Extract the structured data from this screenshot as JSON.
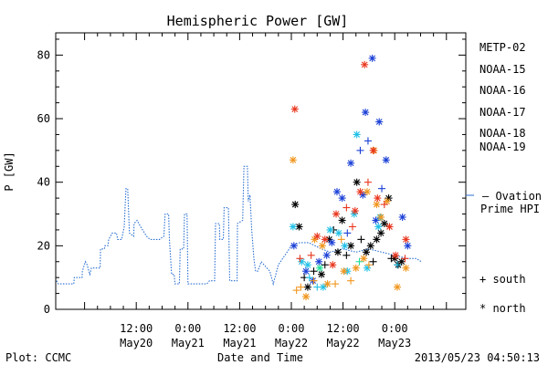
{
  "chart_data": {
    "type": "scatter",
    "title": "Hemispheric Power [GW]",
    "xlabel": "Date and Time",
    "ylabel": "P [GW]",
    "xlim_hours": [
      -66.7,
      28.5
    ],
    "ylim": [
      0,
      87
    ],
    "y_ticks": [
      0,
      20,
      40,
      60,
      80
    ],
    "x_ticks": [
      {
        "h": -48,
        "top": "12:00",
        "bottom": "May20"
      },
      {
        "h": -36,
        "top": "0:00",
        "bottom": "May21"
      },
      {
        "h": -24,
        "top": "12:00",
        "bottom": "May21"
      },
      {
        "h": -12,
        "top": "0:00",
        "bottom": "May22"
      },
      {
        "h": 0,
        "top": "12:00",
        "bottom": "May22"
      },
      {
        "h": 12,
        "top": "0:00",
        "bottom": "May23"
      }
    ],
    "legend": [
      {
        "name": "METP-02",
        "color": "#000000"
      },
      {
        "name": "NOAA-15",
        "color": "#1a3fd6"
      },
      {
        "name": "NOAA-16",
        "color": "#22c0e6"
      },
      {
        "name": "NOAA-17",
        "color": "#22e09a"
      },
      {
        "name": "NOAA-18",
        "color": "#f0961e"
      },
      {
        "name": "NOAA-19",
        "color": "#e8361e"
      }
    ],
    "ovation_label_1": "– Ovation",
    "ovation_label_2": "Prime HPI",
    "ovation_color": "#2a6fd0",
    "marker_south_label": "+ south",
    "marker_north_label": "* north",
    "ovation": [
      [
        -66.5,
        9
      ],
      [
        -66.1,
        8
      ],
      [
        -64.5,
        8
      ],
      [
        -62.5,
        8
      ],
      [
        -62.4,
        10
      ],
      [
        -60.6,
        10
      ],
      [
        -60.5,
        12
      ],
      [
        -59.8,
        15
      ],
      [
        -59.4,
        14
      ],
      [
        -59.0,
        12
      ],
      [
        -58.8,
        11
      ],
      [
        -58.4,
        13
      ],
      [
        -56.4,
        13
      ],
      [
        -56.3,
        19
      ],
      [
        -55.4,
        19
      ],
      [
        -55.3,
        20
      ],
      [
        -54.6,
        20
      ],
      [
        -54.4,
        22
      ],
      [
        -53.6,
        24
      ],
      [
        -52.6,
        24
      ],
      [
        -52.3,
        22
      ],
      [
        -51.4,
        22
      ],
      [
        -50.8,
        26
      ],
      [
        -50.4,
        38
      ],
      [
        -50.0,
        38
      ],
      [
        -49.6,
        24
      ],
      [
        -48.6,
        23
      ],
      [
        -48.5,
        27
      ],
      [
        -47.8,
        28
      ],
      [
        -47.0,
        26
      ],
      [
        -45.6,
        23
      ],
      [
        -44.8,
        22
      ],
      [
        -42.6,
        22
      ],
      [
        -41.6,
        23
      ],
      [
        -41.3,
        30
      ],
      [
        -40.5,
        30
      ],
      [
        -40.3,
        22
      ],
      [
        -39.8,
        11
      ],
      [
        -39.2,
        11
      ],
      [
        -39.0,
        8
      ],
      [
        -38.0,
        8
      ],
      [
        -37.8,
        19
      ],
      [
        -37.0,
        19
      ],
      [
        -36.8,
        30
      ],
      [
        -36.2,
        30
      ],
      [
        -36.0,
        8
      ],
      [
        -31.6,
        8
      ],
      [
        -31.0,
        9
      ],
      [
        -29.8,
        9
      ],
      [
        -29.6,
        27
      ],
      [
        -28.7,
        27
      ],
      [
        -28.6,
        22
      ],
      [
        -27.8,
        22
      ],
      [
        -27.6,
        32
      ],
      [
        -26.6,
        32
      ],
      [
        -26.3,
        9
      ],
      [
        -24.6,
        9
      ],
      [
        -24.5,
        27
      ],
      [
        -23.3,
        28
      ],
      [
        -23.0,
        45
      ],
      [
        -22.2,
        45
      ],
      [
        -22.0,
        34
      ],
      [
        -21.6,
        36
      ],
      [
        -21.2,
        25
      ],
      [
        -20.7,
        16
      ],
      [
        -20.3,
        12
      ],
      [
        -19.8,
        12
      ],
      [
        -19.0,
        15
      ],
      [
        -17.0,
        12
      ],
      [
        -16.2,
        8
      ],
      [
        -15.0,
        14
      ],
      [
        -13.0,
        18
      ],
      [
        -12.0,
        20
      ],
      [
        -10.0,
        21
      ],
      [
        -8.0,
        21
      ],
      [
        -5.0,
        19
      ],
      [
        -3.0,
        18
      ],
      [
        0.0,
        19
      ],
      [
        3.0,
        18
      ],
      [
        6.0,
        19
      ],
      [
        9.0,
        18
      ],
      [
        12.0,
        17
      ],
      [
        15.0,
        16
      ],
      [
        17.0,
        16
      ],
      [
        18.2,
        15
      ]
    ],
    "points": [
      {
        "s": "METP-02",
        "m": "*",
        "x": -11.1,
        "y": 33
      },
      {
        "s": "METP-02",
        "m": "*",
        "x": -10.2,
        "y": 26
      },
      {
        "s": "METP-02",
        "m": "+",
        "x": -9.0,
        "y": 10
      },
      {
        "s": "METP-02",
        "m": "*",
        "x": -8.2,
        "y": 7
      },
      {
        "s": "METP-02",
        "m": "+",
        "x": -6.8,
        "y": 12
      },
      {
        "s": "METP-02",
        "m": "*",
        "x": -5.0,
        "y": 11
      },
      {
        "s": "METP-02",
        "m": "*",
        "x": -3.2,
        "y": 22
      },
      {
        "s": "METP-02",
        "m": "+",
        "x": -2.2,
        "y": 25
      },
      {
        "s": "METP-02",
        "m": "*",
        "x": -0.2,
        "y": 28
      },
      {
        "s": "METP-02",
        "m": "+",
        "x": 0.8,
        "y": 17
      },
      {
        "s": "METP-02",
        "m": "*",
        "x": 1.8,
        "y": 20
      },
      {
        "s": "METP-02",
        "m": "*",
        "x": 3.2,
        "y": 40
      },
      {
        "s": "METP-02",
        "m": "+",
        "x": 4.2,
        "y": 22
      },
      {
        "s": "METP-02",
        "m": "*",
        "x": 5.4,
        "y": 18
      },
      {
        "s": "METP-02",
        "m": "*",
        "x": 6.4,
        "y": 20
      },
      {
        "s": "METP-02",
        "m": "*",
        "x": 7.8,
        "y": 22
      },
      {
        "s": "METP-02",
        "m": "*",
        "x": 8.8,
        "y": 24
      },
      {
        "s": "METP-02",
        "m": "*",
        "x": 9.6,
        "y": 27
      },
      {
        "s": "METP-02",
        "m": "*",
        "x": 10.6,
        "y": 35
      },
      {
        "s": "METP-02",
        "m": "+",
        "x": 11.2,
        "y": 16
      },
      {
        "s": "METP-02",
        "m": "*",
        "x": 12.0,
        "y": 16
      },
      {
        "s": "METP-02",
        "m": "*",
        "x": 12.8,
        "y": 14
      },
      {
        "s": "METP-02",
        "m": "*",
        "x": 13.6,
        "y": 15
      },
      {
        "s": "METP-02",
        "m": "+",
        "x": 7.0,
        "y": 15
      },
      {
        "s": "METP-02",
        "m": "+",
        "x": -4.2,
        "y": 14
      },
      {
        "s": "METP-02",
        "m": "*",
        "x": -1.2,
        "y": 18
      },
      {
        "s": "NOAA-15",
        "m": "*",
        "x": -11.4,
        "y": 20
      },
      {
        "s": "NOAA-15",
        "m": "*",
        "x": -8.6,
        "y": 12
      },
      {
        "s": "NOAA-15",
        "m": "*",
        "x": -7.0,
        "y": 9
      },
      {
        "s": "NOAA-15",
        "m": "*",
        "x": -5.6,
        "y": 15
      },
      {
        "s": "NOAA-15",
        "m": "*",
        "x": -3.8,
        "y": 17
      },
      {
        "s": "NOAA-15",
        "m": "*",
        "x": -1.4,
        "y": 37
      },
      {
        "s": "NOAA-15",
        "m": "*",
        "x": -0.2,
        "y": 35
      },
      {
        "s": "NOAA-15",
        "m": "*",
        "x": 1.8,
        "y": 46
      },
      {
        "s": "NOAA-15",
        "m": "+",
        "x": 4.0,
        "y": 50
      },
      {
        "s": "NOAA-15",
        "m": "*",
        "x": 5.2,
        "y": 62
      },
      {
        "s": "NOAA-15",
        "m": "+",
        "x": 5.8,
        "y": 53
      },
      {
        "s": "NOAA-15",
        "m": "*",
        "x": 6.8,
        "y": 79
      },
      {
        "s": "NOAA-15",
        "m": "*",
        "x": 8.4,
        "y": 59
      },
      {
        "s": "NOAA-15",
        "m": "*",
        "x": 10.0,
        "y": 47
      },
      {
        "s": "NOAA-15",
        "m": "+",
        "x": 9.0,
        "y": 38
      },
      {
        "s": "NOAA-15",
        "m": "*",
        "x": 4.6,
        "y": 36
      },
      {
        "s": "NOAA-15",
        "m": "*",
        "x": 7.6,
        "y": 28
      },
      {
        "s": "NOAA-15",
        "m": "*",
        "x": 13.8,
        "y": 29
      },
      {
        "s": "NOAA-15",
        "m": "*",
        "x": 15.0,
        "y": 20
      },
      {
        "s": "NOAA-15",
        "m": "*",
        "x": -2.6,
        "y": 21
      },
      {
        "s": "NOAA-15",
        "m": "+",
        "x": 1.0,
        "y": 24
      },
      {
        "s": "NOAA-16",
        "m": "*",
        "x": -11.6,
        "y": 26
      },
      {
        "s": "NOAA-16",
        "m": "*",
        "x": -9.6,
        "y": 15
      },
      {
        "s": "NOAA-16",
        "m": "+",
        "x": -7.8,
        "y": 10
      },
      {
        "s": "NOAA-16",
        "m": "+",
        "x": -6.0,
        "y": 7
      },
      {
        "s": "NOAA-16",
        "m": "*",
        "x": -4.6,
        "y": 7
      },
      {
        "s": "NOAA-16",
        "m": "*",
        "x": -3.0,
        "y": 25
      },
      {
        "s": "NOAA-16",
        "m": "*",
        "x": -1.0,
        "y": 24
      },
      {
        "s": "NOAA-16",
        "m": "*",
        "x": 0.4,
        "y": 20
      },
      {
        "s": "NOAA-16",
        "m": "*",
        "x": 1.0,
        "y": 12
      },
      {
        "s": "NOAA-16",
        "m": "*",
        "x": 2.6,
        "y": 30
      },
      {
        "s": "NOAA-16",
        "m": "*",
        "x": 3.2,
        "y": 55
      },
      {
        "s": "NOAA-16",
        "m": "*",
        "x": 5.6,
        "y": 13
      },
      {
        "s": "NOAA-16",
        "m": "*",
        "x": 8.2,
        "y": 26
      },
      {
        "s": "NOAA-16",
        "m": "*",
        "x": 8.6,
        "y": 29
      },
      {
        "s": "NOAA-16",
        "m": "+",
        "x": 12.6,
        "y": 14
      },
      {
        "s": "NOAA-16",
        "m": "*",
        "x": -8.2,
        "y": 14
      },
      {
        "s": "NOAA-17",
        "m": "*",
        "x": -5.4,
        "y": 13
      },
      {
        "s": "NOAA-17",
        "m": "+",
        "x": 3.8,
        "y": 15
      },
      {
        "s": "NOAA-18",
        "m": "*",
        "x": -11.6,
        "y": 47
      },
      {
        "s": "NOAA-18",
        "m": "+",
        "x": -10.8,
        "y": 6
      },
      {
        "s": "NOAA-18",
        "m": "+",
        "x": -9.8,
        "y": 7
      },
      {
        "s": "NOAA-18",
        "m": "*",
        "x": -8.6,
        "y": 4
      },
      {
        "s": "NOAA-18",
        "m": "+",
        "x": -6.8,
        "y": 9
      },
      {
        "s": "NOAA-18",
        "m": "*",
        "x": -6.6,
        "y": 22
      },
      {
        "s": "NOAA-18",
        "m": "*",
        "x": -4.8,
        "y": 20
      },
      {
        "s": "NOAA-18",
        "m": "*",
        "x": -3.6,
        "y": 8
      },
      {
        "s": "NOAA-18",
        "m": "+",
        "x": -1.8,
        "y": 8
      },
      {
        "s": "NOAA-18",
        "m": "*",
        "x": 0.2,
        "y": 12
      },
      {
        "s": "NOAA-18",
        "m": "+",
        "x": 1.8,
        "y": 9
      },
      {
        "s": "NOAA-18",
        "m": "*",
        "x": 3.0,
        "y": 13
      },
      {
        "s": "NOAA-18",
        "m": "*",
        "x": 4.8,
        "y": 16
      },
      {
        "s": "NOAA-18",
        "m": "+",
        "x": 6.0,
        "y": 14
      },
      {
        "s": "NOAA-18",
        "m": "*",
        "x": 7.2,
        "y": 50
      },
      {
        "s": "NOAA-18",
        "m": "*",
        "x": 7.8,
        "y": 33
      },
      {
        "s": "NOAA-18",
        "m": "*",
        "x": 8.8,
        "y": 29
      },
      {
        "s": "NOAA-18",
        "m": "*",
        "x": 10.2,
        "y": 34
      },
      {
        "s": "NOAA-18",
        "m": "*",
        "x": 12.6,
        "y": 7
      },
      {
        "s": "NOAA-18",
        "m": "*",
        "x": 14.6,
        "y": 13
      },
      {
        "s": "NOAA-18",
        "m": "+",
        "x": -0.4,
        "y": 22
      },
      {
        "s": "NOAA-18",
        "m": "*",
        "x": 5.6,
        "y": 37
      },
      {
        "s": "NOAA-19",
        "m": "*",
        "x": -11.2,
        "y": 63
      },
      {
        "s": "NOAA-19",
        "m": "+",
        "x": -10.0,
        "y": 16
      },
      {
        "s": "NOAA-19",
        "m": "*",
        "x": -6.0,
        "y": 23
      },
      {
        "s": "NOAA-19",
        "m": "*",
        "x": -4.2,
        "y": 22
      },
      {
        "s": "NOAA-19",
        "m": "*",
        "x": -1.6,
        "y": 30
      },
      {
        "s": "NOAA-19",
        "m": "+",
        "x": 0.8,
        "y": 32
      },
      {
        "s": "NOAA-19",
        "m": "+",
        "x": 2.2,
        "y": 26
      },
      {
        "s": "NOAA-19",
        "m": "*",
        "x": 2.8,
        "y": 31
      },
      {
        "s": "NOAA-19",
        "m": "*",
        "x": 4.0,
        "y": 37
      },
      {
        "s": "NOAA-19",
        "m": "*",
        "x": 5.0,
        "y": 77
      },
      {
        "s": "NOAA-19",
        "m": "+",
        "x": 5.8,
        "y": 40
      },
      {
        "s": "NOAA-19",
        "m": "*",
        "x": 7.0,
        "y": 50
      },
      {
        "s": "NOAA-19",
        "m": "*",
        "x": 8.0,
        "y": 35
      },
      {
        "s": "NOAA-19",
        "m": "+",
        "x": 9.6,
        "y": 33
      },
      {
        "s": "NOAA-19",
        "m": "*",
        "x": 10.8,
        "y": 26
      },
      {
        "s": "NOAA-19",
        "m": "*",
        "x": 12.2,
        "y": 17
      },
      {
        "s": "NOAA-19",
        "m": "+",
        "x": 14.4,
        "y": 16
      },
      {
        "s": "NOAA-19",
        "m": "*",
        "x": 14.6,
        "y": 22
      },
      {
        "s": "NOAA-19",
        "m": "*",
        "x": -2.4,
        "y": 14
      },
      {
        "s": "NOAA-19",
        "m": "+",
        "x": -7.4,
        "y": 17
      }
    ]
  },
  "footer": {
    "left": "Plot: CCMC",
    "center": "Date and Time",
    "right": "2013/05/23 04:50:13"
  }
}
